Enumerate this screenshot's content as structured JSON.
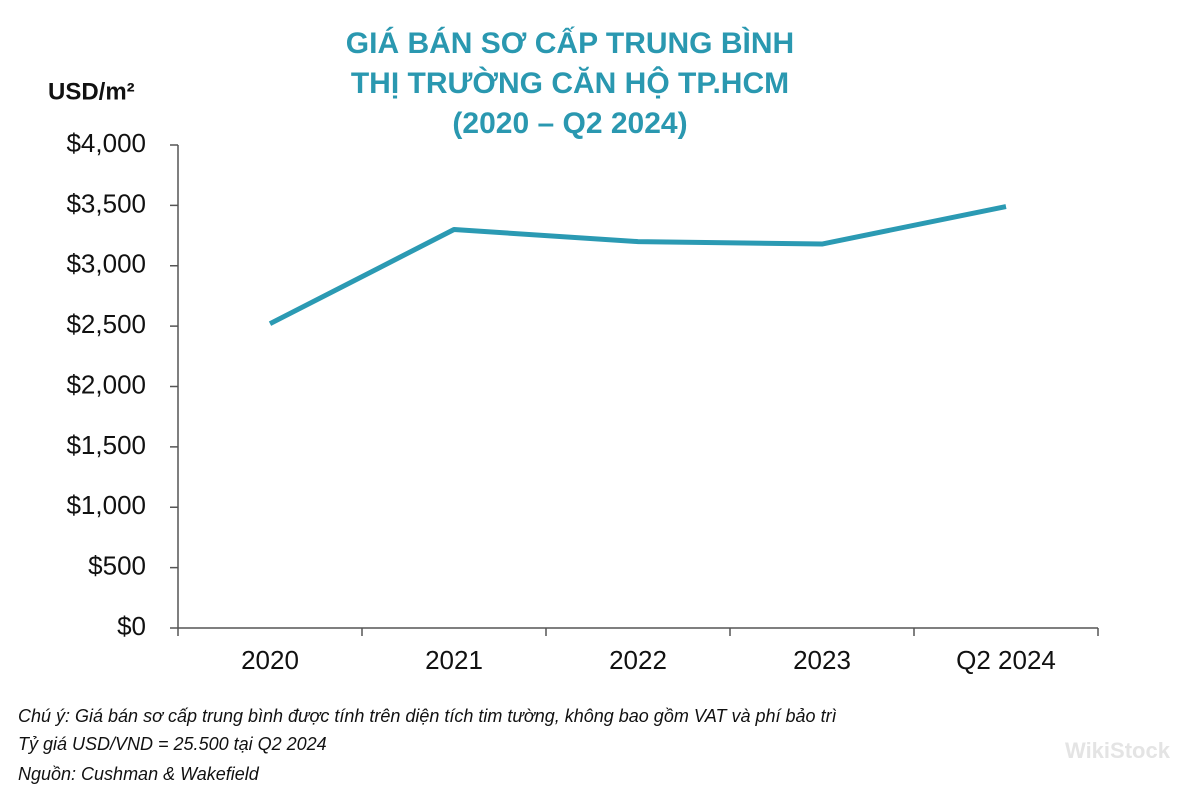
{
  "chart_data": {
    "type": "line",
    "title": [
      "GIÁ BÁN SƠ CẤP TRUNG BÌNH",
      "THỊ TRƯỜNG CĂN HỘ TP.HCM",
      "(2020 – Q2 2024)"
    ],
    "y_axis_label": "USD/m²",
    "categories": [
      "2020",
      "2021",
      "2022",
      "2023",
      "Q2 2024"
    ],
    "values": [
      2520,
      3300,
      3200,
      3180,
      3490
    ],
    "color": "#2b9ab3",
    "ylim": [
      0,
      4000
    ],
    "yticks": [
      {
        "value": 0,
        "label": "$0"
      },
      {
        "value": 500,
        "label": "$500"
      },
      {
        "value": 1000,
        "label": "$1,000"
      },
      {
        "value": 1500,
        "label": "$1,500"
      },
      {
        "value": 2000,
        "label": "$2,000"
      },
      {
        "value": 2500,
        "label": "$2,500"
      },
      {
        "value": 3000,
        "label": "$3,000"
      },
      {
        "value": 3500,
        "label": "$3,500"
      },
      {
        "value": 4000,
        "label": "$4,000"
      }
    ],
    "grid": false,
    "notes": [
      "Chú ý: Giá bán sơ cấp trung bình được tính trên diện tích tim tường, không bao gồm VAT và phí bảo trì",
      "Tỷ giá USD/VND = 25.500 tại Q2 2024",
      "Nguồn: Cushman & Wakefield"
    ],
    "watermark": "WikiStock"
  }
}
